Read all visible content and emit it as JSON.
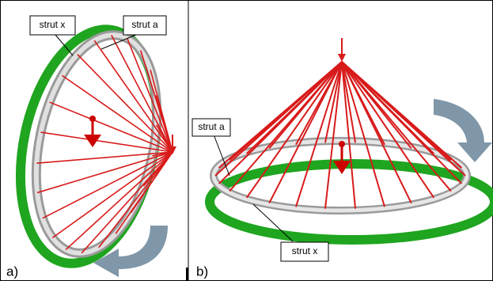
{
  "panels": [
    {
      "label": "a)",
      "callouts": [
        "strut x",
        "strut a"
      ]
    },
    {
      "label": "b)",
      "callouts": [
        "strut a",
        "strut x"
      ]
    }
  ]
}
